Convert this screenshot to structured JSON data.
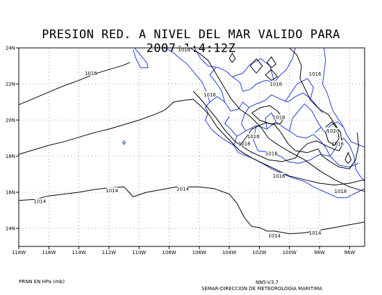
{
  "title": "PRESION RED. A NIVEL DEL MAR VALIDO PARA 2007:1:4:12Z",
  "units_note": "PRNN EN HPa (mb)",
  "model_version": "NN5-V3.7",
  "source_credit": "SEMAR-DIRECCION DE METEOROLOGIA MARITIMA",
  "colors": {
    "coastline": "#1f3fd6",
    "isobar": "#000000",
    "grid": "#808080"
  },
  "map_extent": {
    "lon": [
      -118,
      -95
    ],
    "lat": [
      13,
      24
    ]
  },
  "lon_ticks": [
    {
      "value": -118,
      "label": "118W"
    },
    {
      "value": -116,
      "label": "116W"
    },
    {
      "value": -114,
      "label": "114W"
    },
    {
      "value": -112,
      "label": "112W"
    },
    {
      "value": -110,
      "label": "110W"
    },
    {
      "value": -108,
      "label": "108W"
    },
    {
      "value": -106,
      "label": "106W"
    },
    {
      "value": -104,
      "label": "104W"
    },
    {
      "value": -102,
      "label": "102W"
    },
    {
      "value": -100,
      "label": "100W"
    },
    {
      "value": -98,
      "label": "98W"
    },
    {
      "value": -96,
      "label": "96W"
    }
  ],
  "lat_ticks": [
    {
      "value": 24,
      "label": "24N"
    },
    {
      "value": 22,
      "label": "22N"
    },
    {
      "value": 20,
      "label": "20N"
    },
    {
      "value": 18,
      "label": "18N"
    },
    {
      "value": 16,
      "label": "16N"
    },
    {
      "value": 14,
      "label": "14N"
    }
  ],
  "isobars": [
    {
      "label": "1014",
      "points": [
        [
          -118,
          15.55
        ],
        [
          -117,
          15.6
        ],
        [
          -116,
          15.8
        ],
        [
          -115,
          15.9
        ],
        [
          -114,
          16.0
        ],
        [
          -113,
          16.15
        ],
        [
          -112,
          16.25
        ],
        [
          -111,
          16.3
        ],
        [
          -110.4,
          15.75
        ],
        [
          -109.5,
          16.0
        ],
        [
          -108.5,
          16.15
        ],
        [
          -107.5,
          16.3
        ],
        [
          -106,
          16.3
        ],
        [
          -105,
          16.2
        ],
        [
          -104,
          15.9
        ],
        [
          -103.5,
          15.4
        ],
        [
          -103,
          14.6
        ],
        [
          -102.5,
          14.1
        ],
        [
          -102,
          14.05
        ],
        [
          -101.5,
          13.85
        ],
        [
          -101,
          13.85
        ],
        [
          -100,
          13.7
        ],
        [
          -99,
          13.75
        ],
        [
          -98,
          13.9
        ],
        [
          -97,
          14.05
        ],
        [
          -96,
          14.2
        ],
        [
          -95,
          14.35
        ]
      ],
      "label_at": [
        [
          -116.6,
          15.5
        ],
        [
          -111.8,
          16.1
        ],
        [
          -107.1,
          16.2
        ],
        [
          -101.0,
          13.6
        ],
        [
          -98.3,
          13.75
        ]
      ]
    },
    {
      "label": "1016",
      "points": [
        [
          -118,
          18.1
        ],
        [
          -117,
          18.35
        ],
        [
          -116,
          18.6
        ],
        [
          -115,
          18.8
        ],
        [
          -114,
          19.05
        ],
        [
          -113,
          19.3
        ],
        [
          -112,
          19.5
        ],
        [
          -111,
          19.75
        ],
        [
          -110,
          20.0
        ],
        [
          -109,
          20.3
        ],
        [
          -108.3,
          20.55
        ],
        [
          -107.7,
          21.0
        ],
        [
          -107.0,
          21.1
        ],
        [
          -106.4,
          21.15
        ],
        [
          -105.8,
          20.7
        ],
        [
          -105.3,
          20.25
        ],
        [
          -104.8,
          19.6
        ],
        [
          -104.0,
          18.9
        ],
        [
          -103.3,
          18.3
        ],
        [
          -102.5,
          17.9
        ],
        [
          -101.5,
          17.5
        ],
        [
          -100.5,
          17.1
        ],
        [
          -100,
          16.9
        ],
        [
          -99,
          16.7
        ],
        [
          -98,
          16.5
        ],
        [
          -97,
          16.4
        ],
        [
          -96,
          16.5
        ],
        [
          -95,
          16.7
        ]
      ],
      "label_at": [
        [
          -100.7,
          16.9
        ]
      ]
    },
    {
      "label": "1016",
      "points": [
        [
          -118,
          20.85
        ],
        [
          -117,
          21.2
        ],
        [
          -116,
          21.55
        ],
        [
          -115,
          21.9
        ],
        [
          -114,
          22.2
        ],
        [
          -113,
          22.55
        ],
        [
          -112,
          22.8
        ],
        [
          -111,
          23.05
        ],
        [
          -110.6,
          23.2
        ]
      ],
      "label_at": [
        [
          -113.2,
          22.6
        ]
      ]
    },
    {
      "label": "1016",
      "points": [
        [
          -106.4,
          21.6
        ],
        [
          -106.0,
          21.25
        ],
        [
          -105.5,
          20.75
        ],
        [
          -104.9,
          20.15
        ],
        [
          -104.3,
          19.45
        ],
        [
          -103.6,
          18.8
        ],
        [
          -102.6,
          18.25
        ],
        [
          -101.4,
          17.8
        ],
        [
          -100.5,
          17.7
        ],
        [
          -99.6,
          17.9
        ],
        [
          -99.3,
          18.3
        ],
        [
          -98.8,
          18.7
        ],
        [
          -98.2,
          18.85
        ],
        [
          -97.6,
          18.6
        ],
        [
          -97.1,
          18.4
        ],
        [
          -96.7,
          18.3
        ],
        [
          -96.5,
          18.6
        ],
        [
          -96.6,
          19.3
        ],
        [
          -97.0,
          19.8
        ],
        [
          -97.4,
          20.3
        ],
        [
          -98.0,
          20.6
        ],
        [
          -98.6,
          21.1
        ],
        [
          -99.0,
          21.8
        ],
        [
          -99.3,
          22.3
        ],
        [
          -99.2,
          23.0
        ],
        [
          -99.5,
          23.6
        ],
        [
          -100.0,
          24.0
        ]
      ],
      "label_at": [
        [
          -105.3,
          21.4
        ],
        [
          -103.0,
          18.7
        ],
        [
          -101.2,
          18.15
        ],
        [
          -96.8,
          18.7
        ],
        [
          -98.3,
          22.55
        ],
        [
          -100.9,
          22.0
        ]
      ]
    },
    {
      "label": "1016",
      "points": [
        [
          -103.3,
          18.6
        ],
        [
          -103.0,
          18.9
        ],
        [
          -102.5,
          19.5
        ],
        [
          -101.6,
          19.85
        ],
        [
          -101.0,
          19.75
        ],
        [
          -100.6,
          19.35
        ],
        [
          -100.1,
          18.7
        ],
        [
          -99.6,
          18.3
        ],
        [
          -98.8,
          18.2
        ],
        [
          -98.1,
          18.4
        ],
        [
          -97.8,
          18.0
        ],
        [
          -97.3,
          17.7
        ],
        [
          -96.7,
          17.4
        ],
        [
          -96.0,
          17.3
        ],
        [
          -95.6,
          17.8
        ],
        [
          -95.4,
          18.6
        ],
        [
          -95.5,
          19.3
        ]
      ],
      "label_at": [
        [
          -102.4,
          19.1
        ]
      ]
    },
    {
      "label": "1018",
      "points": [
        [
          -106.6,
          24.0
        ],
        [
          -106.0,
          23.7
        ],
        [
          -105.4,
          23.3
        ],
        [
          -104.9,
          22.6
        ],
        [
          -104.4,
          21.9
        ],
        [
          -103.9,
          21.2
        ],
        [
          -103.3,
          20.6
        ],
        [
          -102.6,
          20.2
        ],
        [
          -101.9,
          19.6
        ],
        [
          -101.4,
          19.0
        ],
        [
          -100.7,
          18.6
        ],
        [
          -100.0,
          18.25
        ],
        [
          -99.0,
          17.8
        ],
        [
          -98.0,
          17.2
        ],
        [
          -97.0,
          16.7
        ],
        [
          -96.0,
          16.3
        ],
        [
          -95.0,
          16.05
        ]
      ],
      "label_at": [
        [
          -107.0,
          23.9
        ],
        [
          -96.6,
          16.05
        ]
      ]
    },
    {
      "label": "1018",
      "points": [
        [
          -102.5,
          20.4
        ],
        [
          -101.9,
          20.7
        ],
        [
          -101.3,
          20.8
        ],
        [
          -100.8,
          20.5
        ],
        [
          -100.4,
          20.1
        ],
        [
          -100.6,
          19.8
        ],
        [
          -101.3,
          19.8
        ],
        [
          -102.0,
          20.0
        ],
        [
          -102.5,
          20.4
        ]
      ],
      "label_at": [
        [
          -100.7,
          20.15
        ]
      ]
    },
    {
      "label": "1020",
      "points": [
        [
          -97.6,
          19.6
        ],
        [
          -97.2,
          19.9
        ],
        [
          -96.8,
          19.5
        ],
        [
          -96.7,
          19.0
        ],
        [
          -97.0,
          18.6
        ],
        [
          -97.4,
          18.8
        ],
        [
          -97.6,
          19.3
        ]
      ],
      "label_at": [
        [
          -97.1,
          19.4
        ]
      ]
    }
  ],
  "small_closed_contours": [
    [
      [
        -104.0,
        23.4
      ],
      [
        -103.8,
        23.7
      ],
      [
        -103.6,
        23.4
      ],
      [
        -103.8,
        23.2
      ]
    ],
    [
      [
        -102.6,
        23.0
      ],
      [
        -102.2,
        23.4
      ],
      [
        -101.8,
        23.0
      ],
      [
        -102.2,
        22.6
      ]
    ],
    [
      [
        -101.5,
        23.2
      ],
      [
        -101.2,
        23.5
      ],
      [
        -100.9,
        23.1
      ],
      [
        -101.2,
        22.9
      ]
    ],
    [
      [
        -96.3,
        17.8
      ],
      [
        -96.1,
        18.2
      ],
      [
        -95.9,
        17.8
      ],
      [
        -96.1,
        17.6
      ]
    ],
    [
      [
        -101.6,
        22.5
      ],
      [
        -101.2,
        22.8
      ],
      [
        -100.8,
        22.4
      ],
      [
        -101.2,
        22.2
      ]
    ]
  ],
  "coastline": [
    [
      [
        -110.3,
        24.0
      ],
      [
        -109.9,
        23.6
      ],
      [
        -109.5,
        23.2
      ],
      [
        -109.4,
        22.9
      ],
      [
        -109.9,
        22.9
      ],
      [
        -110.2,
        23.4
      ],
      [
        -110.4,
        23.9
      ]
    ],
    [
      [
        -108.3,
        24.0
      ],
      [
        -107.8,
        23.8
      ],
      [
        -107.4,
        23.5
      ],
      [
        -106.8,
        23.1
      ],
      [
        -106.3,
        22.6
      ],
      [
        -105.8,
        22.1
      ],
      [
        -105.5,
        21.5
      ],
      [
        -105.3,
        21.0
      ],
      [
        -105.6,
        20.7
      ],
      [
        -105.4,
        20.4
      ],
      [
        -105.6,
        20.0
      ],
      [
        -105.2,
        19.5
      ],
      [
        -104.8,
        19.2
      ],
      [
        -104.3,
        18.9
      ],
      [
        -103.7,
        18.6
      ],
      [
        -103.4,
        18.2
      ],
      [
        -102.5,
        17.9
      ],
      [
        -101.8,
        17.6
      ],
      [
        -101.2,
        17.3
      ],
      [
        -100.4,
        17.0
      ],
      [
        -99.8,
        16.8
      ],
      [
        -99.0,
        16.6
      ],
      [
        -98.4,
        16.3
      ],
      [
        -97.6,
        16.0
      ],
      [
        -96.8,
        15.7
      ],
      [
        -96.2,
        15.7
      ],
      [
        -95.5,
        16.0
      ],
      [
        -95.0,
        16.2
      ]
    ],
    [
      [
        -97.7,
        24.0
      ],
      [
        -97.6,
        23.3
      ],
      [
        -97.7,
        22.6
      ],
      [
        -97.8,
        22.0
      ],
      [
        -97.5,
        21.5
      ],
      [
        -97.3,
        21.0
      ],
      [
        -97.1,
        20.5
      ],
      [
        -96.7,
        20.0
      ],
      [
        -96.4,
        19.6
      ],
      [
        -96.2,
        19.2
      ],
      [
        -95.9,
        18.8
      ],
      [
        -95.3,
        18.6
      ],
      [
        -95.0,
        18.5
      ]
    ],
    [
      [
        -106.3,
        24.0
      ],
      [
        -105.9,
        23.4
      ],
      [
        -105.4,
        23.0
      ],
      [
        -104.7,
        22.9
      ],
      [
        -104.2,
        22.7
      ],
      [
        -103.8,
        22.4
      ],
      [
        -103.3,
        22.1
      ],
      [
        -103.1,
        21.6
      ],
      [
        -102.6,
        21.7
      ],
      [
        -102.2,
        22.0
      ],
      [
        -101.6,
        22.2
      ],
      [
        -101.0,
        22.1
      ],
      [
        -100.6,
        22.5
      ],
      [
        -100.2,
        22.8
      ],
      [
        -99.8,
        23.4
      ],
      [
        -99.6,
        24.0
      ]
    ],
    [
      [
        -105.3,
        21.0
      ],
      [
        -104.8,
        21.3
      ],
      [
        -104.3,
        21.0
      ],
      [
        -103.9,
        20.5
      ],
      [
        -103.4,
        20.6
      ],
      [
        -103.1,
        21.0
      ],
      [
        -102.7,
        20.7
      ],
      [
        -102.2,
        20.9
      ],
      [
        -101.6,
        21.1
      ],
      [
        -101.2,
        21.4
      ],
      [
        -100.7,
        21.2
      ],
      [
        -100.1,
        21.0
      ],
      [
        -99.6,
        21.3
      ],
      [
        -99.1,
        21.5
      ],
      [
        -98.6,
        21.2
      ],
      [
        -98.2,
        20.8
      ],
      [
        -97.8,
        20.4
      ]
    ],
    [
      [
        -103.7,
        18.6
      ],
      [
        -103.5,
        19.1
      ],
      [
        -103.9,
        19.5
      ],
      [
        -104.3,
        19.8
      ],
      [
        -104.0,
        20.2
      ]
    ],
    [
      [
        -103.5,
        19.1
      ],
      [
        -102.9,
        19.4
      ],
      [
        -102.2,
        19.7
      ],
      [
        -101.5,
        19.5
      ],
      [
        -100.9,
        19.9
      ],
      [
        -100.4,
        19.6
      ],
      [
        -100.0,
        19.4
      ],
      [
        -99.5,
        19.1
      ],
      [
        -98.9,
        19.0
      ],
      [
        -98.4,
        19.2
      ],
      [
        -98.0,
        18.9
      ],
      [
        -97.6,
        18.5
      ],
      [
        -97.3,
        18.0
      ]
    ],
    [
      [
        -102.2,
        19.7
      ],
      [
        -102.4,
        18.9
      ],
      [
        -102.1,
        18.3
      ],
      [
        -101.3,
        18.2
      ],
      [
        -100.6,
        18.0
      ],
      [
        -100.1,
        17.7
      ],
      [
        -99.4,
        17.6
      ],
      [
        -98.6,
        17.8
      ],
      [
        -98.0,
        18.1
      ],
      [
        -97.3,
        18.0
      ],
      [
        -96.7,
        17.5
      ],
      [
        -96.0,
        17.4
      ],
      [
        -95.4,
        17.6
      ]
    ],
    [
      [
        -100.0,
        19.4
      ],
      [
        -99.8,
        20.1
      ],
      [
        -99.4,
        20.5
      ],
      [
        -99.0,
        20.9
      ],
      [
        -98.5,
        20.5
      ],
      [
        -98.2,
        20.0
      ],
      [
        -97.9,
        19.6
      ],
      [
        -98.3,
        19.3
      ]
    ],
    [
      [
        -98.6,
        21.2
      ],
      [
        -98.4,
        21.8
      ],
      [
        -98.8,
        22.3
      ],
      [
        -99.5,
        22.0
      ],
      [
        -99.9,
        21.5
      ],
      [
        -100.3,
        21.0
      ]
    ],
    [
      [
        -101.0,
        22.1
      ],
      [
        -101.3,
        23.0
      ],
      [
        -101.9,
        23.4
      ],
      [
        -102.6,
        23.1
      ],
      [
        -103.1,
        22.6
      ],
      [
        -103.8,
        22.4
      ]
    ],
    [
      [
        -104.3,
        21.0
      ],
      [
        -104.5,
        21.6
      ],
      [
        -104.9,
        22.1
      ],
      [
        -105.3,
        22.5
      ],
      [
        -104.9,
        22.9
      ]
    ],
    [
      [
        -97.3,
        18.0
      ],
      [
        -96.8,
        18.6
      ],
      [
        -96.4,
        19.0
      ],
      [
        -96.0,
        18.6
      ],
      [
        -95.7,
        18.0
      ],
      [
        -95.6,
        17.3
      ],
      [
        -95.3,
        16.9
      ],
      [
        -95.0,
        16.6
      ]
    ],
    [
      [
        -96.4,
        19.6
      ],
      [
        -96.8,
        19.9
      ],
      [
        -97.3,
        19.7
      ],
      [
        -97.6,
        19.3
      ],
      [
        -97.9,
        19.6
      ]
    ],
    [
      [
        -111.1,
        18.75
      ],
      [
        -111.0,
        18.85
      ],
      [
        -110.9,
        18.75
      ],
      [
        -111.0,
        18.65
      ],
      [
        -111.1,
        18.75
      ]
    ],
    [
      [
        -102.9,
        19.4
      ],
      [
        -103.2,
        19.8
      ],
      [
        -103.0,
        20.3
      ],
      [
        -102.7,
        20.7
      ]
    ],
    [
      [
        -101.5,
        19.5
      ],
      [
        -101.6,
        20.1
      ],
      [
        -101.2,
        20.4
      ],
      [
        -100.9,
        19.9
      ]
    ]
  ]
}
